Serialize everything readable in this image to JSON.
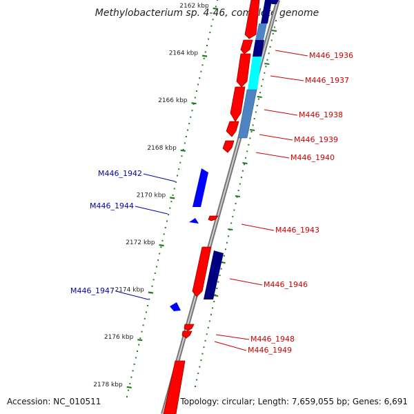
{
  "title": "Methylobacterium sp. 4-46, complete genome",
  "accession": "Accession: NC_010511",
  "summary": "Topology: circular; Length: 7,659,055 bp; Genes: 6,691",
  "colors": {
    "forward": "#ff0000",
    "reverse": "#0000ff",
    "forward_label": "#cc0000",
    "reverse_label": "#0000aa",
    "navy": "#000080",
    "cyan": "#00ffff",
    "steel": "#4f84c4",
    "tick": "#1f7a1f",
    "backbone": "#888888"
  },
  "ticks": {
    "labels": [
      "2162 kbp",
      "2164 kbp",
      "2166 kbp",
      "2168 kbp",
      "2170 kbp",
      "2172 kbp",
      "2174 kbp",
      "2176 kbp",
      "2178 kbp"
    ]
  },
  "genes": {
    "forward": [
      "M446_1936",
      "M446_1937",
      "M446_1938",
      "M446_1939",
      "M446_1940",
      "M446_1943",
      "M446_1946",
      "M446_1948",
      "M446_1949"
    ],
    "reverse": [
      "M446_1942",
      "M446_1944",
      "M446_1947"
    ]
  }
}
